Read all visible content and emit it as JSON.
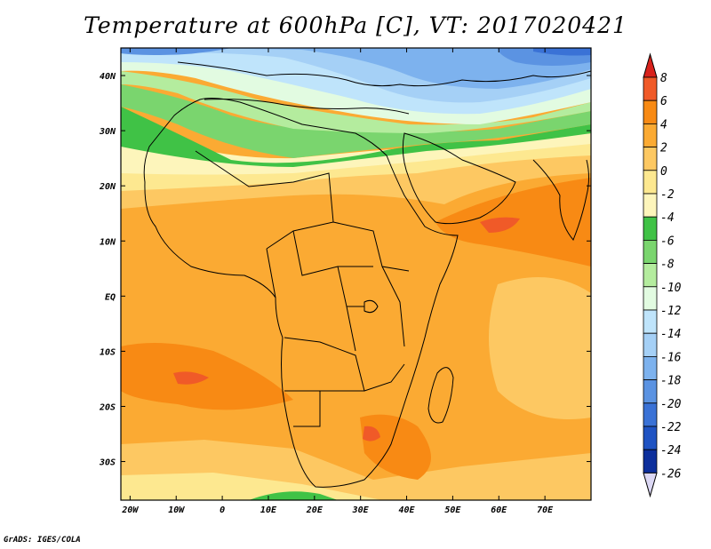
{
  "title": "Temperature at 600hPa [C], VT: 2017020421",
  "footer": "GrADS: IGES/COLA",
  "lon_ticks": [
    "20W",
    "10W",
    "0",
    "10E",
    "20E",
    "30E",
    "40E",
    "50E",
    "60E",
    "70E"
  ],
  "lat_ticks": [
    "40N",
    "30N",
    "20N",
    "10N",
    "EQ",
    "10S",
    "20S",
    "30S"
  ],
  "colorbar": {
    "levels": [
      "8",
      "6",
      "4",
      "2",
      "0",
      "-2",
      "-4",
      "-6",
      "-8",
      "-10",
      "-12",
      "-14",
      "-16",
      "-18",
      "-20",
      "-22",
      "-24",
      "-26"
    ],
    "colors": [
      "#f05a28",
      "#f88a14",
      "#fbaa33",
      "#fdc862",
      "#fde890",
      "#fdf5bb",
      "#40c246",
      "#7ad56e",
      "#b4ec9e",
      "#e2fbe1",
      "#bfe4fb",
      "#a5d0f6",
      "#7db2ee",
      "#5b93e2",
      "#3a72d6",
      "#1f53c3",
      "#0d2f9c"
    ],
    "top_arrow_color": "#d8221c",
    "bottom_arrow_color": "#dcd8f4"
  },
  "chart_data": {
    "type": "heatmap",
    "title": "Temperature at 600hPa [C], VT: 2017020421",
    "lon_range": [
      -22,
      80
    ],
    "lat_range": [
      -37,
      45
    ],
    "field_summary": [
      {
        "lat_band": "38N-45N",
        "temperature_c": -16
      },
      {
        "lat_band": "32N-38N",
        "temperature_c": -11
      },
      {
        "lat_band": "25N-32N",
        "temperature_c": -6
      },
      {
        "lat_band": "18N-25N",
        "temperature_c": -3
      },
      {
        "lat_band": "5N-18N",
        "temperature_c": 2
      },
      {
        "lat_band": "15S-5N",
        "temperature_c": 3
      },
      {
        "lat_band": "25S-15S",
        "temperature_c": 4
      },
      {
        "lat_band": "37S-25S",
        "temperature_c": 1
      }
    ]
  }
}
